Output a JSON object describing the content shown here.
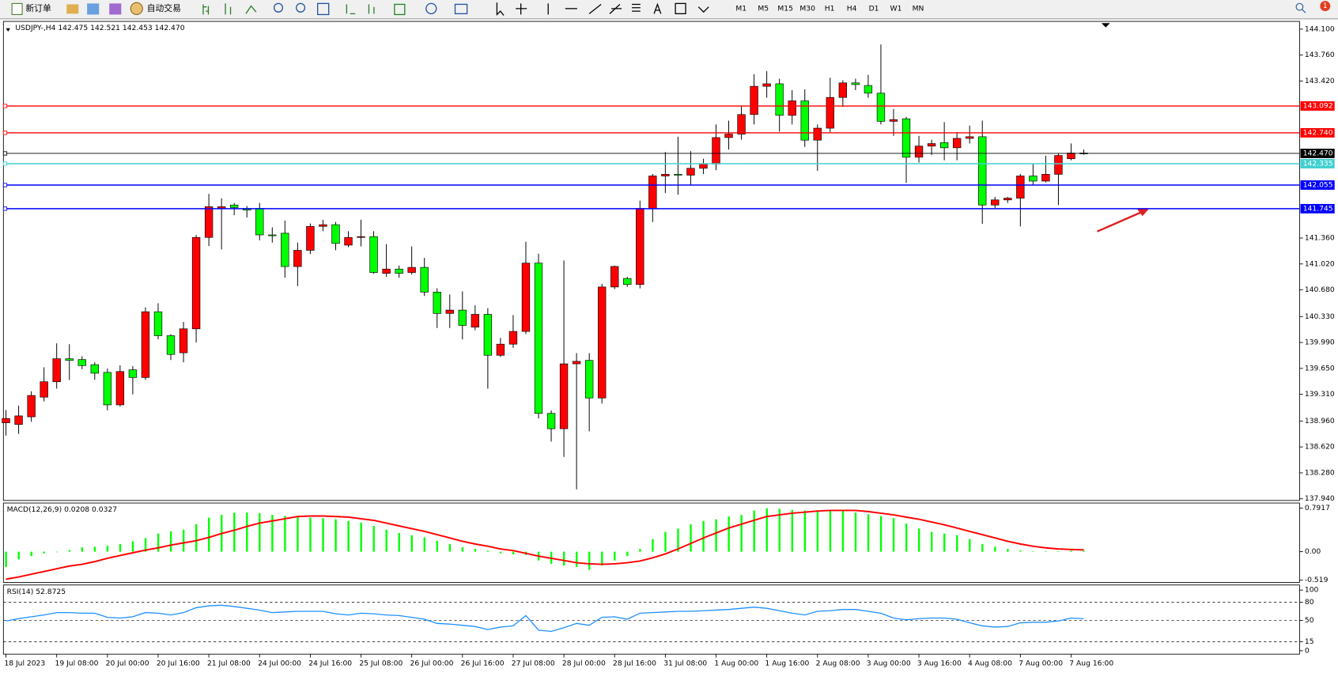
{
  "toolbar": {
    "new_order": "新订单",
    "auto_trading": "自动交易",
    "timeframes": [
      "M1",
      "M5",
      "M15",
      "M30",
      "H1",
      "H4",
      "D1",
      "W1",
      "MN"
    ],
    "notifications": "1"
  },
  "chart_data": [
    {
      "type": "candlestick",
      "title": "USDJPY-,H4  142.475 142.521 142.453 142.470",
      "bull_color": "#ff0000",
      "bear_color": "#00ff00",
      "ylim": [
        137.918,
        144.179
      ],
      "yticks": [
        {
          "value": 144.1,
          "label": "144.100"
        },
        {
          "value": 143.76,
          "label": "143.760"
        },
        {
          "value": 143.42,
          "label": "143.420"
        },
        {
          "value": 141.36,
          "label": "141.360"
        },
        {
          "value": 141.02,
          "label": "141.020"
        },
        {
          "value": 140.68,
          "label": "140.680"
        },
        {
          "value": 140.33,
          "label": "140.330"
        },
        {
          "value": 139.99,
          "label": "139.990"
        },
        {
          "value": 139.65,
          "label": "139.650"
        },
        {
          "value": 139.31,
          "label": "139.310"
        },
        {
          "value": 138.96,
          "label": "138.960"
        },
        {
          "value": 138.62,
          "label": "138.620"
        },
        {
          "value": 138.28,
          "label": "138.280"
        },
        {
          "value": 137.94,
          "label": "137.940"
        }
      ],
      "levels": [
        {
          "value": 143.092,
          "label": "143.092",
          "color": "#ff0000"
        },
        {
          "value": 142.74,
          "label": "142.740",
          "color": "#ff0000"
        },
        {
          "value": 142.47,
          "label": "142.470",
          "color": "#000000"
        },
        {
          "value": 142.335,
          "label": "142.335",
          "color": "#40d0d0"
        },
        {
          "value": 142.055,
          "label": "142.055",
          "color": "#0000ff"
        },
        {
          "value": 141.745,
          "label": "141.745",
          "color": "#0000ff"
        }
      ],
      "time_labels": [
        "18 Jul 2023",
        "19 Jul 08:00",
        "20 Jul 00:00",
        "20 Jul 16:00",
        "21 Jul 08:00",
        "24 Jul 00:00",
        "24 Jul 16:00",
        "25 Jul 08:00",
        "26 Jul 00:00",
        "26 Jul 16:00",
        "27 Jul 08:00",
        "28 Jul 00:00",
        "28 Jul 16:00",
        "31 Jul 08:00",
        "1 Aug 00:00",
        "1 Aug 16:00",
        "2 Aug 08:00",
        "3 Aug 00:00",
        "3 Aug 16:00",
        "4 Aug 08:00",
        "7 Aug 00:00",
        "7 Aug 16:00"
      ],
      "candles": [
        [
          138.937,
          139.105,
          138.769,
          138.993
        ],
        [
          138.915,
          139.161,
          138.791,
          139.027
        ],
        [
          139.015,
          139.35,
          138.95,
          139.295
        ],
        [
          139.273,
          139.665,
          139.217,
          139.475
        ],
        [
          139.475,
          139.979,
          139.385,
          139.777
        ],
        [
          139.777,
          139.968,
          139.497,
          139.755
        ],
        [
          139.766,
          139.81,
          139.64,
          139.687
        ],
        [
          139.699,
          139.73,
          139.5,
          139.587
        ],
        [
          139.598,
          139.65,
          139.1,
          139.172
        ],
        [
          139.172,
          139.69,
          139.15,
          139.609
        ],
        [
          139.631,
          139.68,
          139.31,
          139.531
        ],
        [
          139.531,
          140.45,
          139.5,
          140.393
        ],
        [
          140.393,
          140.505,
          140.03,
          140.079
        ],
        [
          140.079,
          140.1,
          139.76,
          139.833
        ],
        [
          139.855,
          140.26,
          139.73,
          140.169
        ],
        [
          140.169,
          141.4,
          139.99,
          141.368
        ],
        [
          141.368,
          141.939,
          141.255,
          141.771
        ],
        [
          141.749,
          141.88,
          141.21,
          141.771
        ],
        [
          141.793,
          141.82,
          141.66,
          141.76
        ],
        [
          141.749,
          141.78,
          141.63,
          141.727
        ],
        [
          141.749,
          141.82,
          141.33,
          141.401
        ],
        [
          141.401,
          141.5,
          141.3,
          141.39
        ],
        [
          141.423,
          141.59,
          140.84,
          140.986
        ],
        [
          140.986,
          141.3,
          140.73,
          141.199
        ],
        [
          141.199,
          141.55,
          141.15,
          141.513
        ],
        [
          141.513,
          141.6,
          141.45,
          141.535
        ],
        [
          141.535,
          141.57,
          141.2,
          141.289
        ],
        [
          141.267,
          141.45,
          141.24,
          141.368
        ],
        [
          141.368,
          141.6,
          141.25,
          141.379
        ],
        [
          141.379,
          141.45,
          140.89,
          140.908
        ],
        [
          140.897,
          141.28,
          140.85,
          140.953
        ],
        [
          140.953,
          141.0,
          140.84,
          140.897
        ],
        [
          140.908,
          141.25,
          140.88,
          140.975
        ],
        [
          140.975,
          141.1,
          140.6,
          140.651
        ],
        [
          140.651,
          140.7,
          140.18,
          140.371
        ],
        [
          140.371,
          140.62,
          140.18,
          140.415
        ],
        [
          140.415,
          140.66,
          140.03,
          140.214
        ],
        [
          140.191,
          140.48,
          140.15,
          140.359
        ],
        [
          140.359,
          140.44,
          139.385,
          139.822
        ],
        [
          139.822,
          140.05,
          139.8,
          139.968
        ],
        [
          139.968,
          140.35,
          139.92,
          140.135
        ],
        [
          140.135,
          141.311,
          140.1,
          141.031
        ],
        [
          141.031,
          141.155,
          138.993,
          139.06
        ],
        [
          139.06,
          139.1,
          138.69,
          138.859
        ],
        [
          138.859,
          141.065,
          138.489,
          139.71
        ],
        [
          139.71,
          139.85,
          138.064,
          139.743
        ],
        [
          139.755,
          139.85,
          138.825,
          139.262
        ],
        [
          139.262,
          140.76,
          139.19,
          140.718
        ],
        [
          140.718,
          141.0,
          140.69,
          140.987
        ],
        [
          140.83,
          140.85,
          140.72,
          140.751
        ],
        [
          140.751,
          141.85,
          140.7,
          141.748
        ],
        [
          141.748,
          142.2,
          141.569,
          142.174
        ],
        [
          142.174,
          142.488,
          141.95,
          142.196
        ],
        [
          142.196,
          142.689,
          141.93,
          142.185
        ],
        [
          142.185,
          142.5,
          142.05,
          142.275
        ],
        [
          142.275,
          142.4,
          142.2,
          142.331
        ],
        [
          142.331,
          142.85,
          142.25,
          142.678
        ],
        [
          142.678,
          142.9,
          142.52,
          142.723
        ],
        [
          142.723,
          143.1,
          142.65,
          142.98
        ],
        [
          142.98,
          143.507,
          142.85,
          143.35
        ],
        [
          143.35,
          143.55,
          143.2,
          143.383
        ],
        [
          143.383,
          143.45,
          142.756,
          142.969
        ],
        [
          142.969,
          143.3,
          142.85,
          143.159
        ],
        [
          143.159,
          143.31,
          142.555,
          142.644
        ],
        [
          142.644,
          142.85,
          142.241,
          142.801
        ],
        [
          142.801,
          143.462,
          142.75,
          143.204
        ],
        [
          143.204,
          143.43,
          143.08,
          143.395
        ],
        [
          143.395,
          143.45,
          143.3,
          143.373
        ],
        [
          143.361,
          143.5,
          143.2,
          143.26
        ],
        [
          143.26,
          143.899,
          142.85,
          142.891
        ],
        [
          142.891,
          143.05,
          142.7,
          142.913
        ],
        [
          142.924,
          142.95,
          142.084,
          142.42
        ],
        [
          142.42,
          142.7,
          142.35,
          142.566
        ],
        [
          142.566,
          142.65,
          142.45,
          142.599
        ],
        [
          142.611,
          142.88,
          142.38,
          142.544
        ],
        [
          142.544,
          142.75,
          142.38,
          142.667
        ],
        [
          142.667,
          142.835,
          142.6,
          142.689
        ],
        [
          142.689,
          142.9,
          141.547,
          141.793
        ],
        [
          141.793,
          141.9,
          141.75,
          141.86
        ],
        [
          141.86,
          141.9,
          141.82,
          141.883
        ],
        [
          141.883,
          142.2,
          141.513,
          142.174
        ],
        [
          142.174,
          142.33,
          142.05,
          142.107
        ],
        [
          142.107,
          142.44,
          142.09,
          142.196
        ],
        [
          142.196,
          142.47,
          141.793,
          142.443
        ],
        [
          142.4,
          142.6,
          142.38,
          142.475
        ],
        [
          142.475,
          142.521,
          142.453,
          142.47
        ]
      ]
    },
    {
      "type": "macd",
      "title": "MACD(12,26,9) 0.0208 0.0327",
      "ylim": [
        -0.559,
        0.87
      ],
      "yticks": [
        0.7917,
        {
          "value": 0,
          "label": "0.00"
        },
        -0.519
      ],
      "histogram": {
        "color": "#00ff00",
        "values": [
          -0.28,
          -0.14,
          -0.08,
          -0.03,
          0.0,
          0.03,
          0.08,
          0.09,
          0.11,
          0.14,
          0.19,
          0.25,
          0.33,
          0.37,
          0.4,
          0.5,
          0.62,
          0.67,
          0.71,
          0.71,
          0.7,
          0.67,
          0.65,
          0.64,
          0.62,
          0.61,
          0.59,
          0.56,
          0.53,
          0.47,
          0.4,
          0.34,
          0.3,
          0.26,
          0.2,
          0.14,
          0.08,
          0.05,
          0.02,
          -0.03,
          -0.05,
          -0.06,
          -0.16,
          -0.22,
          -0.25,
          -0.28,
          -0.33,
          -0.25,
          -0.16,
          -0.08,
          0.05,
          0.23,
          0.36,
          0.42,
          0.5,
          0.56,
          0.59,
          0.64,
          0.67,
          0.75,
          0.79,
          0.78,
          0.76,
          0.75,
          0.75,
          0.76,
          0.75,
          0.71,
          0.68,
          0.65,
          0.61,
          0.51,
          0.42,
          0.36,
          0.33,
          0.3,
          0.23,
          0.14,
          0.09,
          0.05,
          0.02,
          0.01,
          0.01,
          0.01,
          0.02,
          0.0208
        ]
      },
      "signal": {
        "color": "#ff0000",
        "values": [
          -0.5,
          -0.46,
          -0.41,
          -0.36,
          -0.31,
          -0.26,
          -0.23,
          -0.18,
          -0.12,
          -0.07,
          -0.02,
          0.03,
          0.07,
          0.12,
          0.16,
          0.2,
          0.26,
          0.33,
          0.39,
          0.46,
          0.52,
          0.56,
          0.6,
          0.64,
          0.65,
          0.65,
          0.64,
          0.63,
          0.6,
          0.57,
          0.52,
          0.47,
          0.42,
          0.37,
          0.31,
          0.25,
          0.19,
          0.14,
          0.1,
          0.05,
          0.02,
          -0.03,
          -0.08,
          -0.12,
          -0.16,
          -0.2,
          -0.22,
          -0.23,
          -0.22,
          -0.2,
          -0.17,
          -0.11,
          -0.04,
          0.05,
          0.15,
          0.25,
          0.34,
          0.43,
          0.5,
          0.57,
          0.64,
          0.67,
          0.7,
          0.72,
          0.74,
          0.75,
          0.75,
          0.75,
          0.73,
          0.7,
          0.67,
          0.63,
          0.59,
          0.54,
          0.49,
          0.43,
          0.37,
          0.31,
          0.25,
          0.19,
          0.14,
          0.1,
          0.07,
          0.05,
          0.04,
          0.0327
        ]
      }
    },
    {
      "type": "line",
      "title": "RSI(14) 52.8725",
      "color": "#1e90ff",
      "ylim": [
        -5.6,
        107
      ],
      "yticks": [
        100,
        80,
        50,
        15,
        0
      ],
      "values": [
        49,
        53,
        56,
        59,
        63,
        63,
        62,
        62,
        55,
        54,
        56,
        63,
        62,
        59,
        63,
        71,
        74,
        75,
        73,
        70,
        67,
        63,
        64,
        65,
        65,
        65,
        61,
        59,
        62,
        61,
        59,
        58,
        55,
        52,
        45,
        44,
        42,
        40,
        35,
        39,
        41,
        58,
        34,
        32,
        38,
        45,
        42,
        55,
        56,
        52,
        62,
        63,
        64,
        65,
        65,
        66,
        67,
        68,
        70,
        72,
        70,
        66,
        62,
        59,
        65,
        66,
        68,
        68,
        65,
        62,
        54,
        51,
        53,
        54,
        54,
        52,
        46,
        41,
        39,
        40,
        46,
        47,
        47,
        49,
        54,
        52.87
      ]
    }
  ]
}
